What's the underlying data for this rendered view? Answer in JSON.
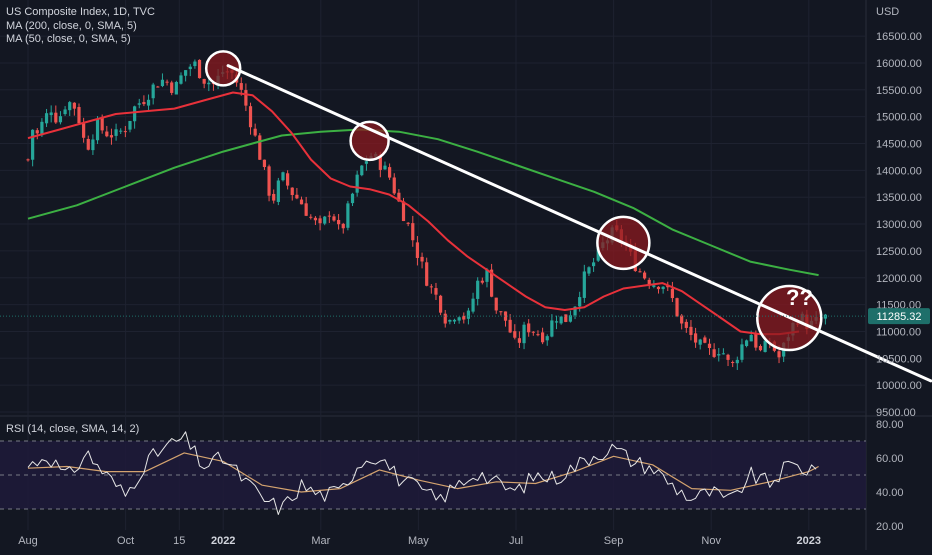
{
  "chart_data": {
    "type": "line",
    "main": {
      "title": "US Composite Index, 1D, TVC",
      "indicators": [
        "MA (200, close, 0, SMA, 5)",
        "MA (50, close, 0, SMA, 5)"
      ],
      "currency": "USD",
      "ylim": [
        9500,
        16800
      ],
      "yticks": [
        "16500.00",
        "16000.00",
        "15500.00",
        "15000.00",
        "14500.00",
        "14000.00",
        "13500.00",
        "13000.00",
        "12500.00",
        "12000.00",
        "11500.00",
        "11000.00",
        "10500.00",
        "10000.00",
        "9500.00"
      ],
      "last_price": "11285.32",
      "annotation": "??",
      "price_points": [
        {
          "t": 0,
          "v": 14200
        },
        {
          "t": 0.05,
          "v": 14800
        },
        {
          "t": 0.1,
          "v": 14650
        },
        {
          "t": 0.15,
          "v": 14900
        },
        {
          "t": 0.2,
          "v": 15050
        },
        {
          "t": 0.25,
          "v": 15200
        },
        {
          "t": 0.3,
          "v": 14900
        },
        {
          "t": 0.4,
          "v": 15300
        },
        {
          "t": 0.5,
          "v": 15150
        },
        {
          "t": 0.55,
          "v": 14700
        },
        {
          "t": 0.6,
          "v": 14400
        },
        {
          "t": 0.7,
          "v": 14850
        },
        {
          "t": 0.8,
          "v": 14700
        },
        {
          "t": 0.9,
          "v": 14650
        },
        {
          "t": 1.0,
          "v": 14800
        },
        {
          "t": 1.1,
          "v": 15200
        },
        {
          "t": 1.2,
          "v": 15350
        },
        {
          "t": 1.3,
          "v": 15600
        },
        {
          "t": 1.4,
          "v": 15700
        },
        {
          "t": 1.5,
          "v": 15500
        },
        {
          "t": 1.6,
          "v": 15850
        },
        {
          "t": 1.7,
          "v": 16000
        },
        {
          "t": 1.8,
          "v": 15700
        },
        {
          "t": 1.9,
          "v": 15600
        },
        {
          "t": 2.0,
          "v": 15850
        },
        {
          "t": 2.1,
          "v": 15800
        },
        {
          "t": 2.2,
          "v": 15400
        },
        {
          "t": 2.3,
          "v": 14800
        },
        {
          "t": 2.4,
          "v": 14100
        },
        {
          "t": 2.5,
          "v": 13400
        },
        {
          "t": 2.6,
          "v": 13900
        },
        {
          "t": 2.7,
          "v": 13600
        },
        {
          "t": 2.8,
          "v": 13400
        },
        {
          "t": 2.9,
          "v": 13100
        },
        {
          "t": 3.0,
          "v": 12900
        },
        {
          "t": 3.1,
          "v": 13300
        },
        {
          "t": 3.2,
          "v": 12800
        },
        {
          "t": 3.3,
          "v": 13400
        },
        {
          "t": 3.4,
          "v": 14000
        },
        {
          "t": 3.5,
          "v": 14300
        },
        {
          "t": 3.6,
          "v": 14150
        },
        {
          "t": 3.7,
          "v": 13900
        },
        {
          "t": 3.8,
          "v": 13400
        },
        {
          "t": 3.9,
          "v": 12950
        },
        {
          "t": 4.0,
          "v": 12400
        },
        {
          "t": 4.1,
          "v": 11900
        },
        {
          "t": 4.2,
          "v": 11600
        },
        {
          "t": 4.3,
          "v": 11150
        },
        {
          "t": 4.4,
          "v": 11400
        },
        {
          "t": 4.5,
          "v": 11200
        },
        {
          "t": 4.6,
          "v": 11900
        },
        {
          "t": 4.7,
          "v": 12100
        },
        {
          "t": 4.8,
          "v": 11400
        },
        {
          "t": 4.9,
          "v": 11200
        },
        {
          "t": 5.0,
          "v": 10700
        },
        {
          "t": 5.1,
          "v": 11100
        },
        {
          "t": 5.2,
          "v": 11000
        },
        {
          "t": 5.3,
          "v": 10900
        },
        {
          "t": 5.4,
          "v": 11300
        },
        {
          "t": 5.5,
          "v": 11200
        },
        {
          "t": 5.6,
          "v": 11500
        },
        {
          "t": 5.7,
          "v": 12000
        },
        {
          "t": 5.8,
          "v": 12300
        },
        {
          "t": 5.9,
          "v": 12650
        },
        {
          "t": 6.0,
          "v": 12850
        },
        {
          "t": 6.1,
          "v": 12700
        },
        {
          "t": 6.2,
          "v": 12300
        },
        {
          "t": 6.3,
          "v": 12050
        },
        {
          "t": 6.4,
          "v": 11900
        },
        {
          "t": 6.5,
          "v": 11900
        },
        {
          "t": 6.6,
          "v": 11600
        },
        {
          "t": 6.7,
          "v": 11100
        },
        {
          "t": 6.8,
          "v": 10900
        },
        {
          "t": 6.9,
          "v": 10700
        },
        {
          "t": 7.0,
          "v": 10600
        },
        {
          "t": 7.1,
          "v": 10700
        },
        {
          "t": 7.2,
          "v": 10300
        },
        {
          "t": 7.3,
          "v": 10700
        },
        {
          "t": 7.4,
          "v": 11000
        },
        {
          "t": 7.5,
          "v": 10600
        },
        {
          "t": 7.6,
          "v": 10800
        },
        {
          "t": 7.7,
          "v": 10500
        },
        {
          "t": 7.8,
          "v": 11000
        },
        {
          "t": 7.9,
          "v": 11300
        },
        {
          "t": 8.0,
          "v": 11100
        },
        {
          "t": 8.1,
          "v": 11200
        },
        {
          "t": 8.2,
          "v": 11285
        }
      ],
      "ma200": [
        {
          "t": 0,
          "v": 13100
        },
        {
          "t": 0.5,
          "v": 13350
        },
        {
          "t": 1.0,
          "v": 13700
        },
        {
          "t": 1.5,
          "v": 14050
        },
        {
          "t": 2.0,
          "v": 14350
        },
        {
          "t": 2.3,
          "v": 14500
        },
        {
          "t": 2.6,
          "v": 14650
        },
        {
          "t": 3.0,
          "v": 14720
        },
        {
          "t": 3.4,
          "v": 14760
        },
        {
          "t": 3.8,
          "v": 14720
        },
        {
          "t": 4.2,
          "v": 14580
        },
        {
          "t": 4.6,
          "v": 14350
        },
        {
          "t": 5.0,
          "v": 14100
        },
        {
          "t": 5.4,
          "v": 13850
        },
        {
          "t": 5.8,
          "v": 13600
        },
        {
          "t": 6.2,
          "v": 13300
        },
        {
          "t": 6.6,
          "v": 12900
        },
        {
          "t": 7.0,
          "v": 12600
        },
        {
          "t": 7.4,
          "v": 12300
        },
        {
          "t": 7.8,
          "v": 12150
        },
        {
          "t": 8.1,
          "v": 12050
        }
      ],
      "ma50": [
        {
          "t": 0,
          "v": 14600
        },
        {
          "t": 0.3,
          "v": 14750
        },
        {
          "t": 0.6,
          "v": 14900
        },
        {
          "t": 0.9,
          "v": 15050
        },
        {
          "t": 1.2,
          "v": 15100
        },
        {
          "t": 1.5,
          "v": 15150
        },
        {
          "t": 1.8,
          "v": 15300
        },
        {
          "t": 2.1,
          "v": 15450
        },
        {
          "t": 2.3,
          "v": 15400
        },
        {
          "t": 2.5,
          "v": 15100
        },
        {
          "t": 2.7,
          "v": 14700
        },
        {
          "t": 2.9,
          "v": 14200
        },
        {
          "t": 3.1,
          "v": 13850
        },
        {
          "t": 3.3,
          "v": 13700
        },
        {
          "t": 3.5,
          "v": 13650
        },
        {
          "t": 3.7,
          "v": 13550
        },
        {
          "t": 3.9,
          "v": 13350
        },
        {
          "t": 4.1,
          "v": 13050
        },
        {
          "t": 4.3,
          "v": 12700
        },
        {
          "t": 4.5,
          "v": 12400
        },
        {
          "t": 4.7,
          "v": 12150
        },
        {
          "t": 4.9,
          "v": 11900
        },
        {
          "t": 5.1,
          "v": 11650
        },
        {
          "t": 5.3,
          "v": 11450
        },
        {
          "t": 5.5,
          "v": 11400
        },
        {
          "t": 5.7,
          "v": 11450
        },
        {
          "t": 5.9,
          "v": 11650
        },
        {
          "t": 6.1,
          "v": 11800
        },
        {
          "t": 6.3,
          "v": 11850
        },
        {
          "t": 6.5,
          "v": 11900
        },
        {
          "t": 6.7,
          "v": 11750
        },
        {
          "t": 6.9,
          "v": 11500
        },
        {
          "t": 7.1,
          "v": 11250
        },
        {
          "t": 7.3,
          "v": 11000
        },
        {
          "t": 7.5,
          "v": 10950
        },
        {
          "t": 7.7,
          "v": 10950
        },
        {
          "t": 7.9,
          "v": 11000
        }
      ],
      "trendline": [
        {
          "t": 2.05,
          "v": 15950
        },
        {
          "t": 9.25,
          "v": 10080
        }
      ],
      "circles": [
        {
          "t": 2.0,
          "v": 15900
        },
        {
          "t": 3.5,
          "v": 14550
        },
        {
          "t": 6.1,
          "v": 12650
        },
        {
          "t": 7.8,
          "v": 11250
        }
      ]
    },
    "rsi": {
      "label": "RSI (14, close, SMA, 14, 2)",
      "ylim": [
        20,
        80
      ],
      "yticks": [
        "80.00",
        "60.00",
        "40.00",
        "20.00"
      ],
      "band": [
        30,
        70
      ],
      "midline": 50,
      "rsi_points": [
        {
          "t": 0,
          "v": 55
        },
        {
          "t": 0.2,
          "v": 62
        },
        {
          "t": 0.4,
          "v": 48
        },
        {
          "t": 0.6,
          "v": 63
        },
        {
          "t": 0.8,
          "v": 50
        },
        {
          "t": 1.0,
          "v": 38
        },
        {
          "t": 1.2,
          "v": 57
        },
        {
          "t": 1.4,
          "v": 66
        },
        {
          "t": 1.6,
          "v": 72
        },
        {
          "t": 1.8,
          "v": 55
        },
        {
          "t": 2.0,
          "v": 60
        },
        {
          "t": 2.2,
          "v": 48
        },
        {
          "t": 2.4,
          "v": 36
        },
        {
          "t": 2.6,
          "v": 30
        },
        {
          "t": 2.8,
          "v": 44
        },
        {
          "t": 3.0,
          "v": 38
        },
        {
          "t": 3.2,
          "v": 40
        },
        {
          "t": 3.4,
          "v": 58
        },
        {
          "t": 3.6,
          "v": 62
        },
        {
          "t": 3.8,
          "v": 48
        },
        {
          "t": 4.0,
          "v": 42
        },
        {
          "t": 4.2,
          "v": 35
        },
        {
          "t": 4.4,
          "v": 44
        },
        {
          "t": 4.6,
          "v": 52
        },
        {
          "t": 4.8,
          "v": 45
        },
        {
          "t": 5.0,
          "v": 40
        },
        {
          "t": 5.2,
          "v": 50
        },
        {
          "t": 5.4,
          "v": 48
        },
        {
          "t": 5.6,
          "v": 55
        },
        {
          "t": 5.8,
          "v": 62
        },
        {
          "t": 6.0,
          "v": 66
        },
        {
          "t": 6.2,
          "v": 58
        },
        {
          "t": 6.4,
          "v": 54
        },
        {
          "t": 6.6,
          "v": 44
        },
        {
          "t": 6.8,
          "v": 36
        },
        {
          "t": 7.0,
          "v": 40
        },
        {
          "t": 7.2,
          "v": 34
        },
        {
          "t": 7.4,
          "v": 50
        },
        {
          "t": 7.6,
          "v": 45
        },
        {
          "t": 7.8,
          "v": 56
        },
        {
          "t": 8.0,
          "v": 53
        },
        {
          "t": 8.1,
          "v": 58
        }
      ],
      "rsi_ma": [
        {
          "t": 0,
          "v": 54
        },
        {
          "t": 0.4,
          "v": 55
        },
        {
          "t": 0.8,
          "v": 52
        },
        {
          "t": 1.2,
          "v": 52
        },
        {
          "t": 1.6,
          "v": 63
        },
        {
          "t": 2.0,
          "v": 58
        },
        {
          "t": 2.4,
          "v": 44
        },
        {
          "t": 2.8,
          "v": 40
        },
        {
          "t": 3.2,
          "v": 42
        },
        {
          "t": 3.6,
          "v": 53
        },
        {
          "t": 4.0,
          "v": 47
        },
        {
          "t": 4.4,
          "v": 42
        },
        {
          "t": 4.8,
          "v": 46
        },
        {
          "t": 5.2,
          "v": 45
        },
        {
          "t": 5.6,
          "v": 52
        },
        {
          "t": 6.0,
          "v": 61
        },
        {
          "t": 6.4,
          "v": 56
        },
        {
          "t": 6.8,
          "v": 42
        },
        {
          "t": 7.2,
          "v": 41
        },
        {
          "t": 7.6,
          "v": 46
        },
        {
          "t": 8.0,
          "v": 52
        },
        {
          "t": 8.1,
          "v": 55
        }
      ]
    },
    "x_axis": {
      "labels": [
        {
          "text": "Aug",
          "t": 0.0
        },
        {
          "text": "Oct",
          "t": 1.0
        },
        {
          "text": "15",
          "t": 1.55
        },
        {
          "text": "2022",
          "t": 2.0
        },
        {
          "text": "Mar",
          "t": 3.0
        },
        {
          "text": "May",
          "t": 4.0
        },
        {
          "text": "Jul",
          "t": 5.0
        },
        {
          "text": "Sep",
          "t": 6.0
        },
        {
          "text": "Nov",
          "t": 7.0
        },
        {
          "text": "2023",
          "t": 8.0
        }
      ]
    },
    "colors": {
      "background": "#131722",
      "grid": "#1e2230",
      "text": "#b2b5be",
      "up": "#26a69a",
      "down": "#ef5350",
      "ma200": "#3cb043",
      "ma50": "#e8313a",
      "trendline": "#ffffff",
      "rsi": "#e6e6e6",
      "rsi_ma": "#d4a36f",
      "rsi_band": "#1f1a3a",
      "circle_fill": "#8b1a1f",
      "last_price_bg": "#1e6f6a"
    }
  }
}
